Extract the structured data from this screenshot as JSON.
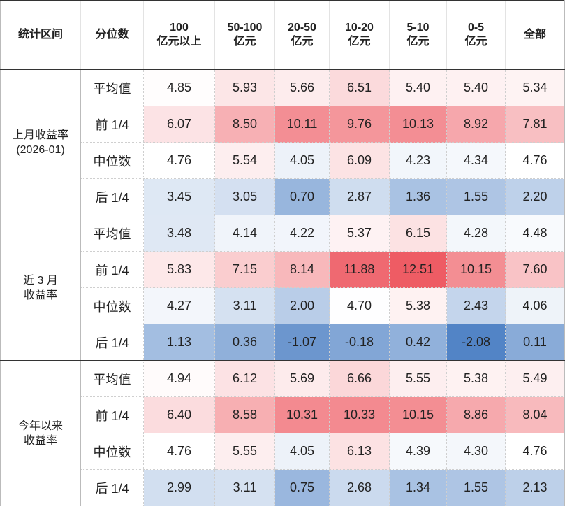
{
  "header": {
    "group_label": "统计区间",
    "quantile_label": "分位数",
    "columns": [
      {
        "line1": "100",
        "line2": "亿元以上"
      },
      {
        "line1": "50-100",
        "line2": "亿元"
      },
      {
        "line1": "20-50",
        "line2": "亿元"
      },
      {
        "line1": "10-20",
        "line2": "亿元"
      },
      {
        "line1": "5-10",
        "line2": "亿元"
      },
      {
        "line1": "0-5",
        "line2": "亿元"
      },
      {
        "line1": "全部",
        "line2": ""
      }
    ]
  },
  "groups": [
    {
      "line1": "上月收益率",
      "line2": "(2026-01)",
      "rows": [
        {
          "label": "平均值",
          "values": [
            "4.85",
            "5.93",
            "5.66",
            "6.51",
            "5.40",
            "5.40",
            "5.34"
          ]
        },
        {
          "label": "前 1/4",
          "values": [
            "6.07",
            "8.50",
            "10.11",
            "9.76",
            "10.13",
            "8.92",
            "7.81"
          ]
        },
        {
          "label": "中位数",
          "values": [
            "4.76",
            "5.54",
            "4.05",
            "6.09",
            "4.23",
            "4.34",
            "4.76"
          ]
        },
        {
          "label": "后 1/4",
          "values": [
            "3.45",
            "3.05",
            "0.70",
            "2.87",
            "1.36",
            "1.55",
            "2.20"
          ]
        }
      ]
    },
    {
      "line1": "近 3 月",
      "line2": "收益率",
      "rows": [
        {
          "label": "平均值",
          "values": [
            "3.48",
            "4.14",
            "4.22",
            "5.37",
            "6.15",
            "4.28",
            "4.48"
          ]
        },
        {
          "label": "前 1/4",
          "values": [
            "5.83",
            "7.15",
            "8.14",
            "11.88",
            "12.51",
            "10.15",
            "7.60"
          ]
        },
        {
          "label": "中位数",
          "values": [
            "4.27",
            "3.11",
            "2.00",
            "4.70",
            "5.38",
            "2.43",
            "4.06"
          ]
        },
        {
          "label": "后 1/4",
          "values": [
            "1.13",
            "0.36",
            "-1.07",
            "-0.18",
            "0.42",
            "-2.08",
            "0.11"
          ]
        }
      ]
    },
    {
      "line1": "今年以来",
      "line2": "收益率",
      "rows": [
        {
          "label": "平均值",
          "values": [
            "4.94",
            "6.12",
            "5.69",
            "6.66",
            "5.55",
            "5.38",
            "5.49"
          ]
        },
        {
          "label": "前 1/4",
          "values": [
            "6.40",
            "8.58",
            "10.31",
            "10.33",
            "10.15",
            "8.86",
            "8.04"
          ]
        },
        {
          "label": "中位数",
          "values": [
            "4.76",
            "5.55",
            "4.05",
            "6.13",
            "4.39",
            "4.30",
            "4.76"
          ]
        },
        {
          "label": "后 1/4",
          "values": [
            "2.99",
            "3.11",
            "0.75",
            "2.68",
            "1.34",
            "1.55",
            "2.13"
          ]
        }
      ]
    }
  ]
}
